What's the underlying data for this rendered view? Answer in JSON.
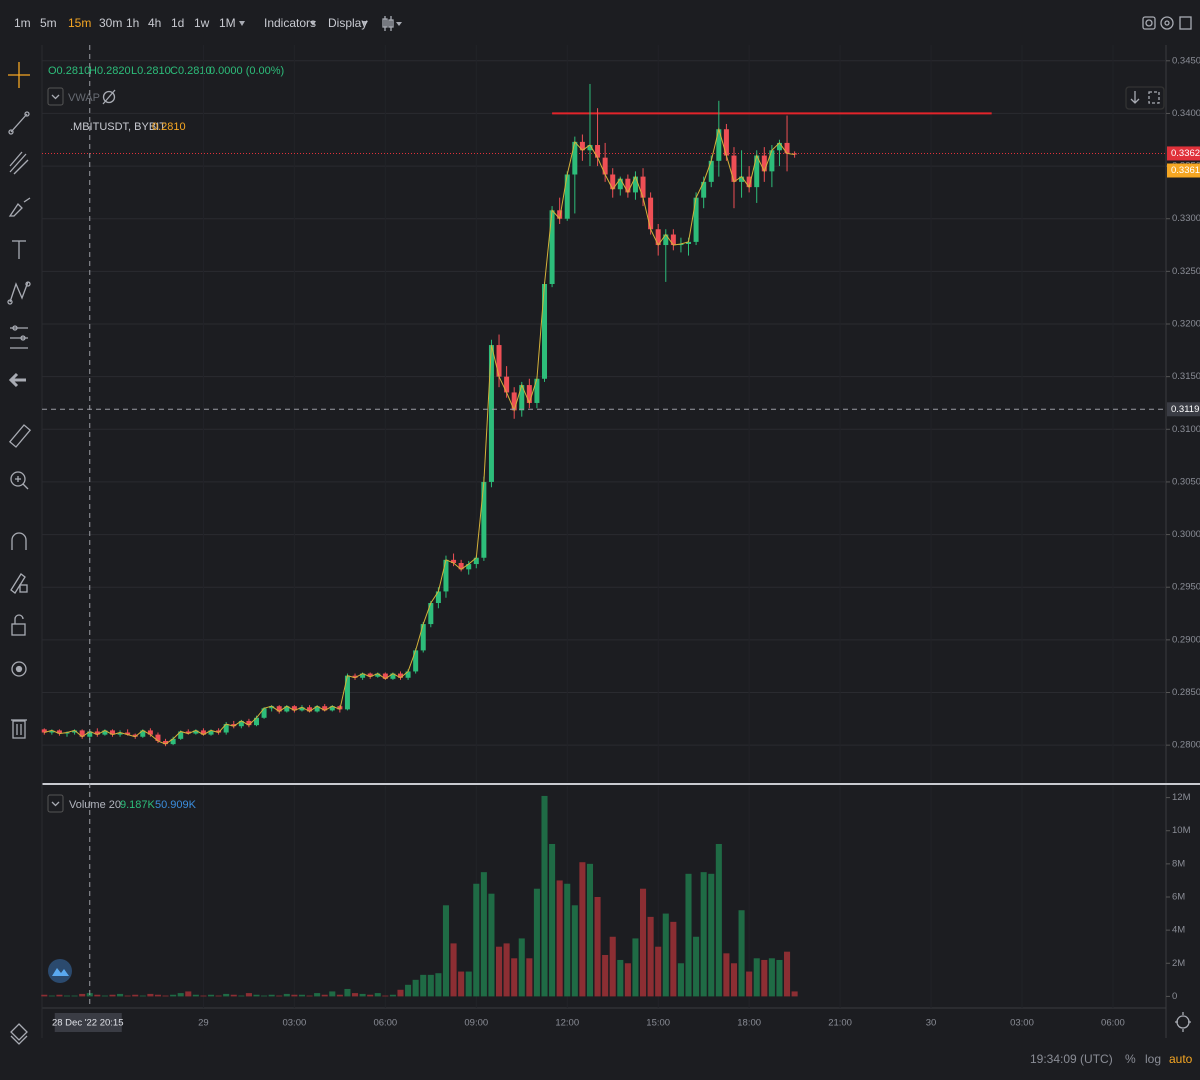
{
  "toolbar": {
    "intervals": [
      "1m",
      "5m",
      "15m",
      "30m",
      "1h",
      "4h",
      "1d",
      "1w",
      "1M"
    ],
    "active_interval_index": 2,
    "menus": [
      "Indicators",
      "Display"
    ]
  },
  "legend": {
    "ohlc": [
      "O0.2810",
      "H0.2820",
      "L0.2810",
      "C0.2810",
      "0.0000 (0.00%)"
    ],
    "indicator": "VWAP",
    "symbol": ".MBITUSDT, BYBIT",
    "last": "0.2810"
  },
  "chart_data": [
    {
      "type": "candlestick",
      "up_color": "#2dbd7a",
      "down_color": "#ef4f55",
      "line_color": "#d4b13a",
      "xlim": [
        -0.3,
        148
      ],
      "xticks": [
        {
          "value": 21,
          "label": "29"
        },
        {
          "value": 33,
          "label": "03:00"
        },
        {
          "value": 45,
          "label": "06:00"
        },
        {
          "value": 57,
          "label": "09:00"
        },
        {
          "value": 69,
          "label": "12:00"
        },
        {
          "value": 81,
          "label": "15:00"
        },
        {
          "value": 93,
          "label": "18:00"
        },
        {
          "value": 105,
          "label": "21:00"
        },
        {
          "value": 117,
          "label": "30"
        },
        {
          "value": 129,
          "label": "03:00"
        },
        {
          "value": 141,
          "label": "06:00"
        }
      ],
      "ylim": [
        0.2765,
        0.3465
      ],
      "yticks": [
        {
          "value": 0.28,
          "label": "0.2800"
        },
        {
          "value": 0.285,
          "label": "0.2850"
        },
        {
          "value": 0.29,
          "label": "0.2900"
        },
        {
          "value": 0.295,
          "label": "0.2950"
        },
        {
          "value": 0.3,
          "label": "0.3000"
        },
        {
          "value": 0.305,
          "label": "0.3050"
        },
        {
          "value": 0.31,
          "label": "0.3100"
        },
        {
          "value": 0.315,
          "label": "0.3150"
        },
        {
          "value": 0.32,
          "label": "0.3200"
        },
        {
          "value": 0.325,
          "label": "0.3250"
        },
        {
          "value": 0.33,
          "label": "0.3300"
        },
        {
          "value": 0.335,
          "label": "0.3350"
        },
        {
          "value": 0.34,
          "label": "0.3400"
        },
        {
          "value": 0.345,
          "label": "0.3450"
        }
      ],
      "grid": true,
      "open": [
        0.2815,
        0.2812,
        0.2814,
        0.2811,
        0.2812,
        0.2814,
        0.2808,
        0.2813,
        0.281,
        0.2814,
        0.281,
        0.2812,
        0.281,
        0.2808,
        0.2814,
        0.281,
        0.2804,
        0.2801,
        0.2806,
        0.2813,
        0.2811,
        0.2814,
        0.281,
        0.2814,
        0.2812,
        0.282,
        0.2818,
        0.2823,
        0.2819,
        0.2826,
        0.2835,
        0.2837,
        0.2832,
        0.2837,
        0.2833,
        0.2836,
        0.2832,
        0.2837,
        0.2833,
        0.2837,
        0.2834,
        0.2866,
        0.2864,
        0.2868,
        0.2865,
        0.2868,
        0.2863,
        0.2868,
        0.2864,
        0.287,
        0.289,
        0.2915,
        0.2935,
        0.2946,
        0.2976,
        0.2973,
        0.2967,
        0.2972,
        0.2978,
        0.305,
        0.318,
        0.315,
        0.3135,
        0.3118,
        0.3142,
        0.3125,
        0.3148,
        0.3238,
        0.3308,
        0.33,
        0.3342,
        0.3373,
        0.3365,
        0.337,
        0.3358,
        0.3342,
        0.3328,
        0.3338,
        0.3325,
        0.334,
        0.332,
        0.329,
        0.3275,
        0.3285,
        0.3275,
        0.3276,
        0.3278,
        0.332,
        0.3335,
        0.3355,
        0.3385,
        0.336,
        0.3335,
        0.334,
        0.333,
        0.336,
        0.3345,
        0.3365,
        0.3372,
        0.3362
      ],
      "high": [
        0.2816,
        0.2815,
        0.2815,
        0.2813,
        0.2815,
        0.2815,
        0.2814,
        0.2816,
        0.2815,
        0.2815,
        0.2814,
        0.2815,
        0.2811,
        0.2815,
        0.2816,
        0.2812,
        0.2806,
        0.2808,
        0.2814,
        0.2815,
        0.2815,
        0.2816,
        0.2815,
        0.2816,
        0.2822,
        0.2823,
        0.2824,
        0.2825,
        0.2828,
        0.2836,
        0.2838,
        0.2838,
        0.2838,
        0.2838,
        0.2838,
        0.2838,
        0.2838,
        0.2839,
        0.2838,
        0.2838,
        0.2868,
        0.2868,
        0.2869,
        0.2869,
        0.2869,
        0.2869,
        0.2869,
        0.287,
        0.2872,
        0.2892,
        0.2917,
        0.2937,
        0.295,
        0.298,
        0.2982,
        0.2976,
        0.2975,
        0.298,
        0.3055,
        0.3185,
        0.319,
        0.316,
        0.314,
        0.3145,
        0.3148,
        0.315,
        0.324,
        0.3312,
        0.332,
        0.3345,
        0.3378,
        0.338,
        0.3428,
        0.3405,
        0.3372,
        0.3348,
        0.334,
        0.3342,
        0.3345,
        0.3348,
        0.3325,
        0.3295,
        0.329,
        0.329,
        0.3282,
        0.3282,
        0.3325,
        0.334,
        0.336,
        0.3412,
        0.339,
        0.3368,
        0.3365,
        0.335,
        0.3365,
        0.3368,
        0.337,
        0.3375,
        0.3398,
        0.3364
      ],
      "low": [
        0.281,
        0.281,
        0.2809,
        0.2808,
        0.281,
        0.2806,
        0.2805,
        0.2808,
        0.2809,
        0.2808,
        0.2808,
        0.2809,
        0.2806,
        0.2807,
        0.2808,
        0.2802,
        0.2799,
        0.28,
        0.2805,
        0.281,
        0.281,
        0.2809,
        0.2809,
        0.281,
        0.281,
        0.2816,
        0.2816,
        0.2817,
        0.2818,
        0.2825,
        0.2832,
        0.283,
        0.2831,
        0.2831,
        0.2832,
        0.2831,
        0.2831,
        0.2832,
        0.2832,
        0.2831,
        0.2833,
        0.2862,
        0.2862,
        0.2863,
        0.2864,
        0.2862,
        0.2862,
        0.2862,
        0.2862,
        0.2868,
        0.2888,
        0.2912,
        0.293,
        0.294,
        0.297,
        0.2965,
        0.2962,
        0.2968,
        0.2975,
        0.3045,
        0.314,
        0.313,
        0.311,
        0.3112,
        0.312,
        0.312,
        0.3145,
        0.3235,
        0.3295,
        0.3298,
        0.3305,
        0.3355,
        0.335,
        0.335,
        0.3335,
        0.332,
        0.3322,
        0.332,
        0.3318,
        0.3312,
        0.3285,
        0.3265,
        0.324,
        0.327,
        0.3268,
        0.3265,
        0.3275,
        0.331,
        0.333,
        0.334,
        0.3355,
        0.331,
        0.332,
        0.3325,
        0.3315,
        0.3335,
        0.333,
        0.335,
        0.3345,
        0.3358
      ],
      "close": [
        0.2812,
        0.2814,
        0.2811,
        0.2812,
        0.2814,
        0.2808,
        0.2813,
        0.281,
        0.2814,
        0.281,
        0.2812,
        0.281,
        0.2808,
        0.2814,
        0.281,
        0.2804,
        0.2801,
        0.2806,
        0.2813,
        0.2811,
        0.2814,
        0.281,
        0.2814,
        0.2812,
        0.282,
        0.2818,
        0.2823,
        0.2819,
        0.2826,
        0.2835,
        0.2837,
        0.2832,
        0.2837,
        0.2833,
        0.2836,
        0.2832,
        0.2837,
        0.2833,
        0.2837,
        0.2834,
        0.2866,
        0.2864,
        0.2868,
        0.2865,
        0.2868,
        0.2863,
        0.2868,
        0.2864,
        0.287,
        0.289,
        0.2915,
        0.2935,
        0.2946,
        0.2976,
        0.2973,
        0.2967,
        0.2972,
        0.2978,
        0.305,
        0.318,
        0.315,
        0.3135,
        0.3118,
        0.3142,
        0.3125,
        0.3148,
        0.3238,
        0.3308,
        0.33,
        0.3342,
        0.3373,
        0.3365,
        0.337,
        0.3358,
        0.3342,
        0.3328,
        0.3338,
        0.3325,
        0.334,
        0.332,
        0.329,
        0.3275,
        0.3285,
        0.3275,
        0.3276,
        0.3278,
        0.332,
        0.3335,
        0.3355,
        0.3385,
        0.336,
        0.3335,
        0.334,
        0.333,
        0.336,
        0.3345,
        0.3365,
        0.3372,
        0.3362,
        0.3361
      ],
      "trend_line": {
        "value": 0.34,
        "color": "#e3242b"
      },
      "markers": [
        {
          "value": 0.3362,
          "color": "#e0313a",
          "line": true
        },
        {
          "value": 0.3361,
          "color": "#f5a623",
          "line": false
        }
      ],
      "crosshair": {
        "x": {
          "value": 6,
          "label": "28 Dec '22  20:15"
        },
        "y": 0.3119
      }
    },
    {
      "type": "bar",
      "name": "Volume 20",
      "legend_values": [
        "9.187K",
        "50.909K"
      ],
      "legend_colors": [
        "#2dbd7a",
        "#3b8ede"
      ],
      "up_color": "#1f6b45",
      "down_color": "#8c2e33",
      "ylim": [
        -0.7,
        12.7
      ],
      "yticks": [
        0,
        {
          "value": 2,
          "label": "2M"
        },
        {
          "value": 4,
          "label": "4M"
        },
        {
          "value": 6,
          "label": "6M"
        },
        {
          "value": 8,
          "label": "8M"
        },
        {
          "value": 10,
          "label": "10M"
        },
        {
          "value": 12,
          "label": "12M"
        }
      ],
      "values": [
        0.1,
        0.05,
        0.1,
        0.05,
        0.05,
        0.15,
        0.2,
        0.1,
        0.05,
        0.1,
        0.15,
        0.05,
        0.1,
        0.05,
        0.15,
        0.1,
        0.05,
        0.1,
        0.2,
        0.3,
        0.1,
        0.05,
        0.1,
        0.05,
        0.15,
        0.1,
        0.05,
        0.2,
        0.1,
        0.05,
        0.1,
        0.05,
        0.15,
        0.1,
        0.1,
        0.05,
        0.2,
        0.1,
        0.3,
        0.1,
        0.45,
        0.2,
        0.15,
        0.1,
        0.2,
        0.05,
        0.1,
        0.4,
        0.7,
        1.0,
        1.3,
        1.3,
        1.4,
        5.5,
        3.2,
        1.5,
        1.5,
        6.8,
        7.5,
        6.2,
        3.0,
        3.2,
        2.3,
        3.5,
        2.3,
        6.5,
        12.1,
        9.2,
        7.0,
        6.8,
        5.5,
        8.1,
        8.0,
        6.0,
        2.5,
        3.6,
        2.2,
        2.0,
        3.5,
        6.5,
        4.8,
        3.0,
        5.0,
        4.5,
        2.0,
        7.4,
        3.6,
        7.5,
        7.4,
        9.2,
        2.6,
        2.0,
        5.2,
        1.5,
        2.3,
        2.2,
        2.3,
        2.2,
        2.7,
        0.3
      ]
    }
  ],
  "status": {
    "time": "19:34:09 (UTC)",
    "percent": "%",
    "log": "log",
    "auto": "auto"
  }
}
